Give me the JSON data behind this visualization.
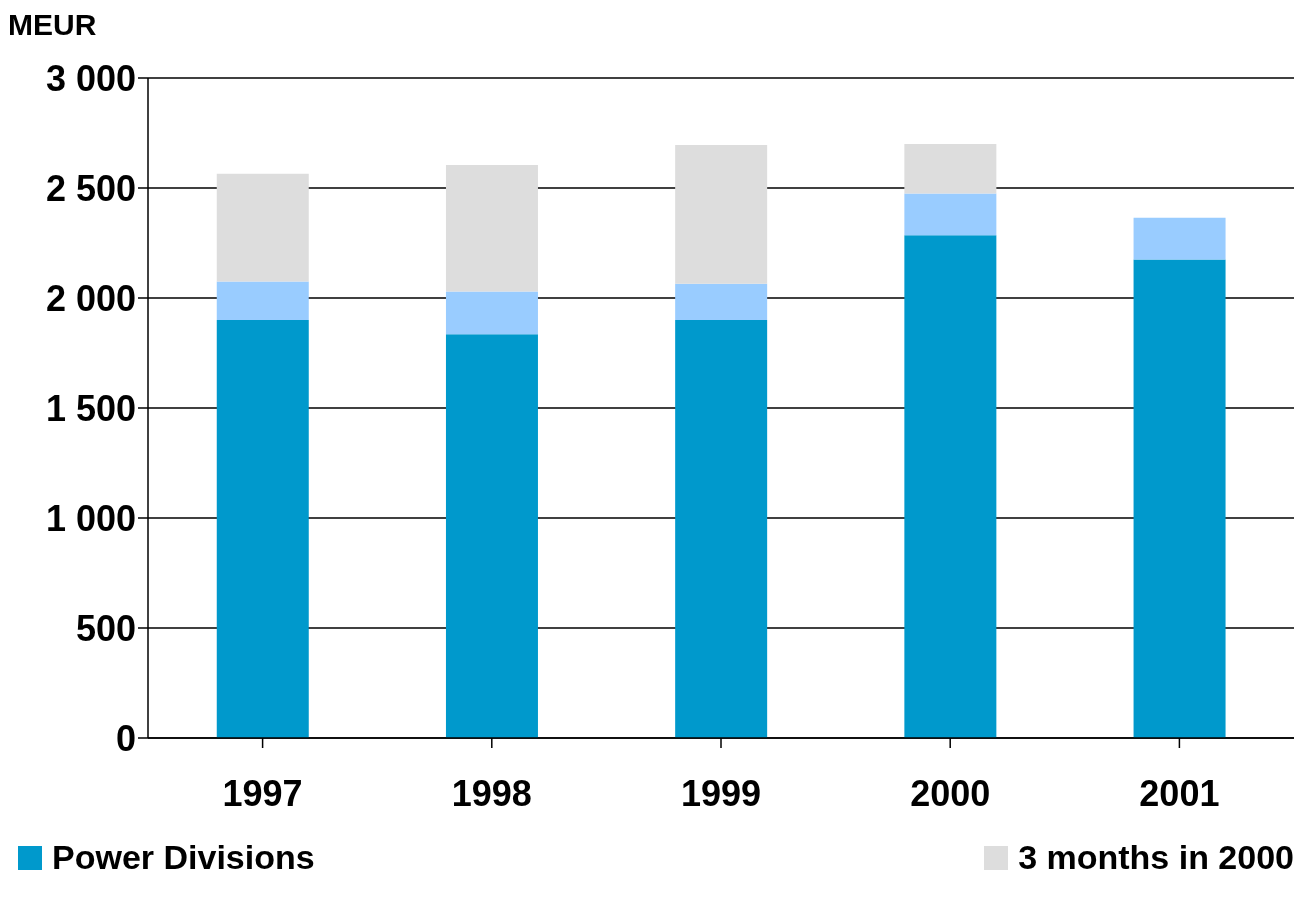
{
  "chart_data": {
    "type": "bar",
    "ylabel": "MEUR",
    "categories": [
      "1997",
      "1998",
      "1999",
      "2000",
      "2001"
    ],
    "stacked": true,
    "series": [
      {
        "name": "Power Divisions",
        "color": "#0099cc",
        "values": [
          1900,
          1835,
          1900,
          2285,
          2175
        ]
      },
      {
        "color": "#99ccff",
        "values": [
          175,
          195,
          165,
          190,
          190
        ]
      },
      {
        "name": "3 months in 2000",
        "color": "#dddddd",
        "values": [
          490,
          575,
          630,
          225,
          null
        ]
      }
    ],
    "ylim": [
      0,
      3000
    ],
    "yticks": [
      {
        "value": 0,
        "label": "0"
      },
      {
        "value": 500,
        "label": "500"
      },
      {
        "value": 1000,
        "label": "1 000"
      },
      {
        "value": 1500,
        "label": "1 500"
      },
      {
        "value": 2000,
        "label": "2 000"
      },
      {
        "value": 2500,
        "label": "2 500"
      },
      {
        "value": 3000,
        "label": "3 000"
      }
    ],
    "grid": "y",
    "legend": "bottom"
  }
}
